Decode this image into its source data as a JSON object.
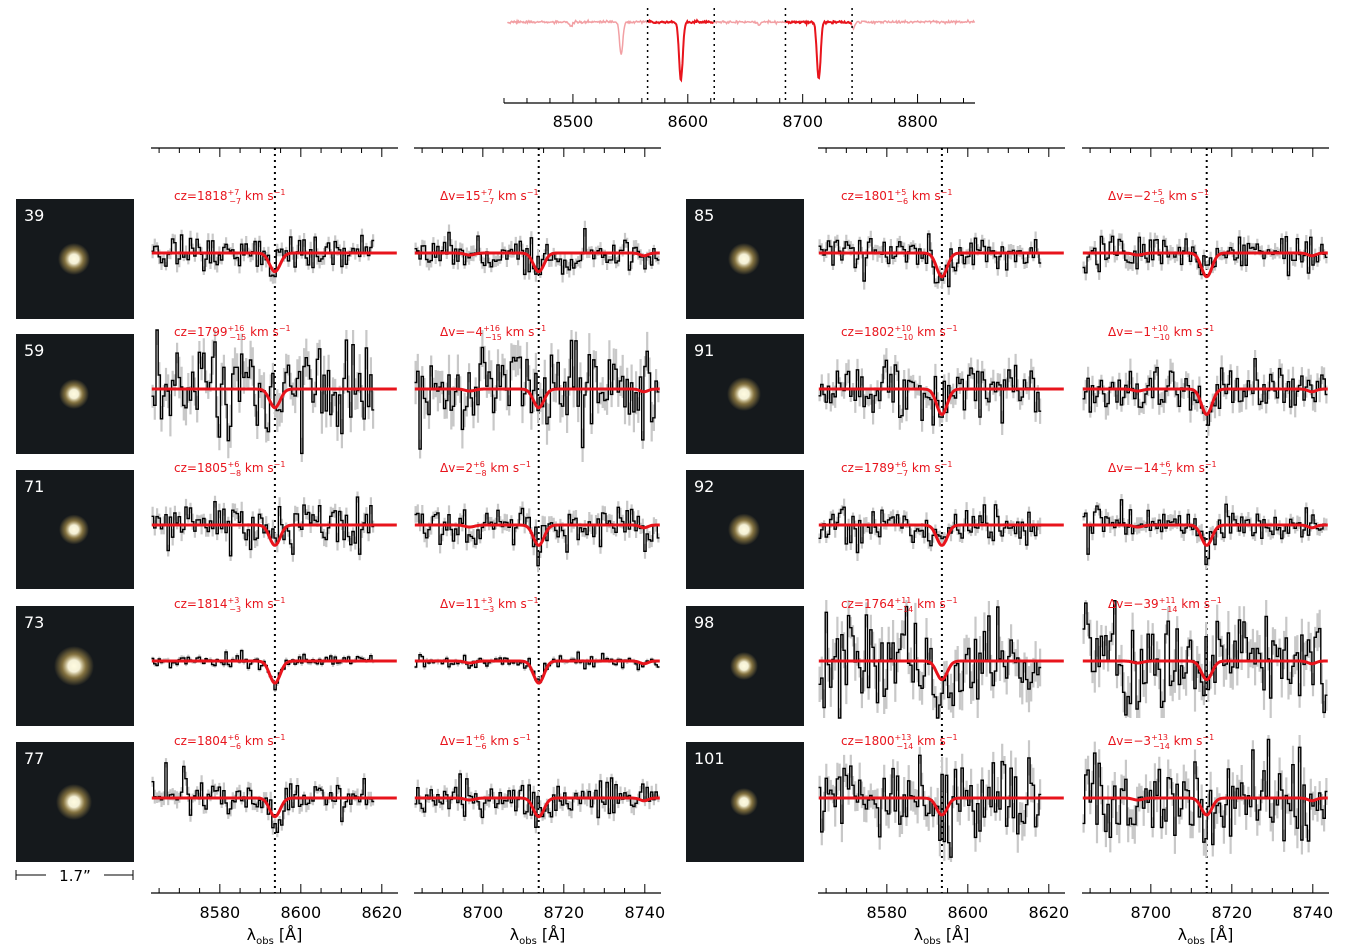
{
  "figure": {
    "scale_bar_label": "1.7”"
  },
  "colors": {
    "model": "#e8141c",
    "model_faint": "#f2a0a4",
    "data": "#000000",
    "data_error": "#c8c8c8",
    "stamp_bg": "#15191c",
    "star_core": "#fffbe0",
    "star_glow": "#d6b45a"
  },
  "chart_data": [
    {
      "type": "line",
      "name": "overview-spectrum",
      "xlim": [
        8440,
        8850
      ],
      "xticks": [
        8500,
        8600,
        8700,
        8800
      ],
      "xtick_labels": [
        "8500",
        "8600",
        "8700",
        "8800"
      ],
      "xlabel": "",
      "absorption_lines": [
        8498,
        8542,
        8594,
        8662,
        8714,
        8744
      ],
      "window_edges": [
        8565,
        8623,
        8685,
        8743
      ]
    },
    {
      "type": "line",
      "name": "spectral-panels",
      "columns": [
        {
          "id": "L1",
          "xlim": [
            8563,
            8624
          ],
          "xticks": [
            8580,
            8600,
            8620
          ],
          "xtick_labels": [
            "8580",
            "8600",
            "8620"
          ],
          "xlabel_main": "λ",
          "xlabel_sub": "obs",
          "xlabel_unit": " [Å]",
          "line_center": 8593.6,
          "label_prefix": "cz"
        },
        {
          "id": "L2",
          "xlim": [
            8683,
            8744
          ],
          "xticks": [
            8700,
            8720,
            8740
          ],
          "xtick_labels": [
            "8700",
            "8720",
            "8740"
          ],
          "xlabel_main": "λ",
          "xlabel_sub": "obs",
          "xlabel_unit": " [Å]",
          "line_center": 8713.8,
          "label_prefix": "Δv"
        },
        {
          "id": "R1",
          "xlim": [
            8563,
            8624
          ],
          "xticks": [
            8580,
            8600,
            8620
          ],
          "xtick_labels": [
            "8580",
            "8600",
            "8620"
          ],
          "xlabel_main": "λ",
          "xlabel_sub": "obs",
          "xlabel_unit": " [Å]",
          "line_center": 8593.6,
          "label_prefix": "cz"
        },
        {
          "id": "R2",
          "xlim": [
            8683,
            8744
          ],
          "xticks": [
            8700,
            8720,
            8740
          ],
          "xtick_labels": [
            "8700",
            "8720",
            "8740"
          ],
          "xlabel_main": "λ",
          "xlabel_sub": "obs",
          "xlabel_unit": " [Å]",
          "line_center": 8713.8,
          "label_prefix": "Δv"
        }
      ],
      "objects": [
        {
          "id": "39",
          "cz": {
            "val": "1818",
            "up": "+7",
            "lo": "−7"
          },
          "dv": {
            "val": "15",
            "up": "+7",
            "lo": "−7"
          },
          "unit": " km s",
          "unit_exp": "−1",
          "line_depth": 0.55,
          "noise": 0.3
        },
        {
          "id": "59",
          "cz": {
            "val": "1799",
            "up": "+16",
            "lo": "−15"
          },
          "dv": {
            "val": "−4",
            "up": "+16",
            "lo": "−15"
          },
          "unit": " km s",
          "unit_exp": "−1",
          "line_depth": 0.55,
          "noise": 0.75
        },
        {
          "id": "71",
          "cz": {
            "val": "1805",
            "up": "+6",
            "lo": "−8"
          },
          "dv": {
            "val": "2",
            "up": "+6",
            "lo": "−8"
          },
          "unit": " km s",
          "unit_exp": "−1",
          "line_depth": 0.6,
          "noise": 0.35
        },
        {
          "id": "73",
          "cz": {
            "val": "1814",
            "up": "+3",
            "lo": "−3"
          },
          "dv": {
            "val": "11",
            "up": "+3",
            "lo": "−3"
          },
          "unit": " km s",
          "unit_exp": "−1",
          "line_depth": 0.65,
          "noise": 0.1
        },
        {
          "id": "77",
          "cz": {
            "val": "1804",
            "up": "+6",
            "lo": "−6"
          },
          "dv": {
            "val": "1",
            "up": "+6",
            "lo": "−6"
          },
          "unit": " km s",
          "unit_exp": "−1",
          "line_depth": 0.55,
          "noise": 0.3
        },
        {
          "id": "85",
          "cz": {
            "val": "1801",
            "up": "+5",
            "lo": "−6"
          },
          "dv": {
            "val": "−2",
            "up": "+5",
            "lo": "−6"
          },
          "unit": " km s",
          "unit_exp": "−1",
          "line_depth": 0.7,
          "noise": 0.3
        },
        {
          "id": "91",
          "cz": {
            "val": "1802",
            "up": "+10",
            "lo": "−10"
          },
          "dv": {
            "val": "−1",
            "up": "+10",
            "lo": "−10"
          },
          "unit": " km s",
          "unit_exp": "−1",
          "line_depth": 0.75,
          "noise": 0.45
        },
        {
          "id": "92",
          "cz": {
            "val": "1789",
            "up": "+6",
            "lo": "−7"
          },
          "dv": {
            "val": "−14",
            "up": "+6",
            "lo": "−7"
          },
          "unit": " km s",
          "unit_exp": "−1",
          "line_depth": 0.6,
          "noise": 0.3
        },
        {
          "id": "98",
          "cz": {
            "val": "1764",
            "up": "+11",
            "lo": "−14"
          },
          "dv": {
            "val": "−39",
            "up": "+11",
            "lo": "−14"
          },
          "unit": " km s",
          "unit_exp": "−1",
          "line_depth": 0.55,
          "noise": 0.8
        },
        {
          "id": "101",
          "cz": {
            "val": "1800",
            "up": "+13",
            "lo": "−14"
          },
          "dv": {
            "val": "−3",
            "up": "+13",
            "lo": "−14"
          },
          "unit": " km s",
          "unit_exp": "−1",
          "line_depth": 0.5,
          "noise": 0.7
        }
      ]
    }
  ]
}
